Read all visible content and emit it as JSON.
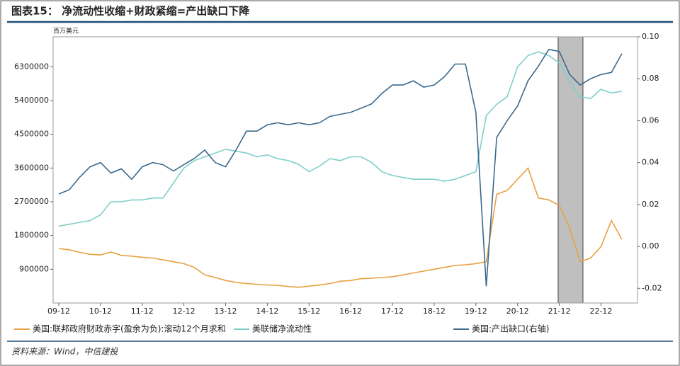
{
  "header": {
    "title": "图表15：  净流动性收缩+财政紧缩=产出缺口下降"
  },
  "source": "资料来源：Wind，中信建投",
  "chart_data": {
    "type": "line",
    "ylabel": "百万美元",
    "categories": [
      "09-12",
      null,
      null,
      null,
      "10-12",
      null,
      null,
      null,
      "11-12",
      null,
      null,
      null,
      "12-12",
      null,
      null,
      null,
      "13-12",
      null,
      null,
      null,
      "14-12",
      null,
      null,
      null,
      "15-12",
      null,
      null,
      null,
      "16-12",
      null,
      null,
      null,
      "17-12",
      null,
      null,
      null,
      "18-12",
      null,
      null,
      null,
      "19-12",
      null,
      null,
      null,
      "20-12",
      null,
      null,
      null,
      "21-12",
      null,
      null,
      null,
      "22-12",
      null,
      null
    ],
    "ylim": [
      0,
      7100000
    ],
    "yticks": [
      900000,
      1800000,
      2700000,
      3600000,
      4500000,
      5400000,
      6300000
    ],
    "y2lim": [
      -0.027,
      0.1
    ],
    "y2ticks": [
      {
        "value": -0.02,
        "label": "-0.02"
      },
      {
        "value": 0,
        "label": "0.00"
      },
      0.02,
      0.04,
      0.06,
      0.08,
      {
        "value": 0.1,
        "label": "0.10"
      }
    ],
    "series": [
      {
        "name": "美国:联邦政府财政赤字(盈余为负):滚动12个月求和",
        "color": "#e8a040",
        "values": [
          1450000,
          1420000,
          1350000,
          1300000,
          1280000,
          1360000,
          1270000,
          1250000,
          1220000,
          1200000,
          1150000,
          1100000,
          1050000,
          950000,
          750000,
          680000,
          600000,
          550000,
          520000,
          500000,
          480000,
          470000,
          440000,
          420000,
          450000,
          480000,
          520000,
          580000,
          600000,
          650000,
          660000,
          680000,
          700000,
          750000,
          800000,
          850000,
          900000,
          950000,
          1000000,
          1020000,
          1050000,
          1100000,
          2900000,
          3000000,
          3300000,
          3600000,
          2800000,
          2750000,
          2600000,
          2000000,
          1100000,
          1200000,
          1500000,
          2200000,
          1700000
        ]
      },
      {
        "name": "美联储净流动性",
        "color": "#7fcfc8",
        "values": [
          2050000,
          2100000,
          2150000,
          2200000,
          2350000,
          2700000,
          2700000,
          2750000,
          2750000,
          2800000,
          2800000,
          3200000,
          3600000,
          3800000,
          3900000,
          4000000,
          4100000,
          4050000,
          4000000,
          3900000,
          3950000,
          3850000,
          3800000,
          3700000,
          3500000,
          3650000,
          3850000,
          3800000,
          3900000,
          3900000,
          3750000,
          3500000,
          3400000,
          3350000,
          3300000,
          3300000,
          3300000,
          3250000,
          3300000,
          3400000,
          3500000,
          5000000,
          5300000,
          5500000,
          6300000,
          6600000,
          6700000,
          6600000,
          6400000,
          5900000,
          5500000,
          5450000,
          5700000,
          5600000,
          5650000
        ]
      },
      {
        "name": "美国:产出缺口(右轴)",
        "color": "#3a6a8e",
        "axis": "y2",
        "values": [
          0.025,
          0.027,
          0.033,
          0.038,
          0.04,
          0.035,
          0.037,
          0.032,
          0.038,
          0.04,
          0.039,
          0.036,
          0.039,
          0.042,
          0.046,
          0.04,
          0.038,
          0.046,
          0.055,
          0.055,
          0.058,
          0.059,
          0.058,
          0.059,
          0.058,
          0.059,
          0.062,
          0.063,
          0.064,
          0.066,
          0.068,
          0.073,
          0.077,
          0.077,
          0.079,
          0.076,
          0.077,
          0.081,
          0.087,
          0.087,
          0.064,
          -0.019,
          0.052,
          0.06,
          0.067,
          0.079,
          0.086,
          0.094,
          0.093,
          0.082,
          0.077,
          0.08,
          0.082,
          0.083,
          0.092
        ]
      }
    ]
  }
}
